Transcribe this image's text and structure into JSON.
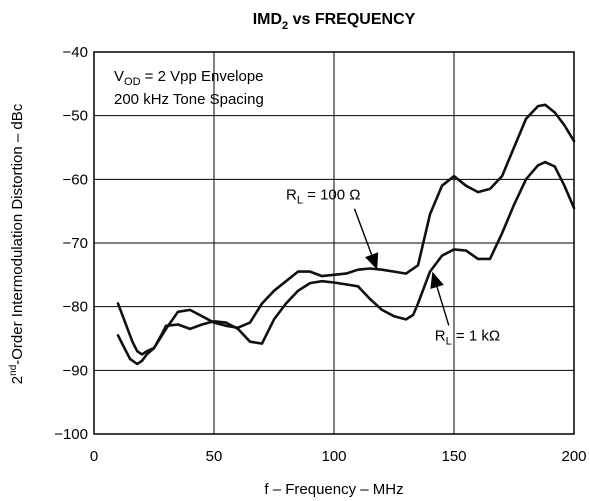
{
  "chart_data": {
    "type": "line",
    "title": {
      "main": "IMD",
      "sub": "2",
      "rest": " vs FREQUENCY"
    },
    "xlabel": "f – Frequency – MHz",
    "ylabel": {
      "pre": "2",
      "sup": "nd",
      "post": "-Order Intermodulation Distortion – dBc"
    },
    "xlim": [
      0,
      200
    ],
    "ylim": [
      -100,
      -40
    ],
    "xticks": [
      0,
      50,
      100,
      150,
      200
    ],
    "yticks": [
      -40,
      -50,
      -60,
      -70,
      -80,
      -90,
      -100
    ],
    "xtick_labels": [
      "0",
      "50",
      "100",
      "150",
      "200"
    ],
    "ytick_labels": [
      "−40",
      "−50",
      "−60",
      "−70",
      "−80",
      "−90",
      "−100"
    ],
    "grid": true,
    "legend_box": {
      "line1": {
        "pre": "V",
        "sub": "OD",
        "post": " = 2 Vpp Envelope"
      },
      "line2": "200 kHz Tone Spacing"
    },
    "annotations": [
      {
        "pre": "R",
        "sub": "L",
        "post": " = 100 Ω",
        "series": 0,
        "label_x": 80,
        "label_y": -63.2,
        "arrow_x": 118,
        "arrow_y": -74.2
      },
      {
        "pre": "R",
        "sub": "L",
        "post": " = 1 kΩ",
        "series": 1,
        "label_x": 142,
        "label_y": -85.3,
        "arrow_x": 141,
        "arrow_y": -74.5
      }
    ],
    "series": [
      {
        "x": [
          10,
          12,
          14,
          16,
          18,
          20,
          22,
          25,
          30,
          35,
          40,
          45,
          50,
          55,
          60,
          65,
          70,
          75,
          80,
          85,
          90,
          95,
          100,
          105,
          110,
          115,
          120,
          125,
          130,
          135,
          140,
          145,
          150,
          155,
          160,
          165,
          170,
          175,
          180,
          185,
          188,
          192,
          196,
          200
        ],
        "y": [
          -79.5,
          -81.5,
          -83.5,
          -85.5,
          -87,
          -87.5,
          -87,
          -86.5,
          -83.5,
          -80.8,
          -80.5,
          -81.5,
          -82.5,
          -83,
          -83.3,
          -82.5,
          -79.5,
          -77.5,
          -76,
          -74.5,
          -74.5,
          -75.2,
          -75,
          -74.8,
          -74.2,
          -74,
          -74.2,
          -74.5,
          -74.8,
          -73.5,
          -65.5,
          -61,
          -59.5,
          -61,
          -62,
          -61.5,
          -59.5,
          -55,
          -50.5,
          -48.5,
          -48.3,
          -49.5,
          -51.5,
          -54
        ]
      },
      {
        "x": [
          10,
          12,
          15,
          18,
          20,
          22,
          25,
          28,
          30,
          35,
          40,
          45,
          50,
          55,
          60,
          65,
          70,
          75,
          80,
          85,
          90,
          95,
          100,
          105,
          110,
          115,
          120,
          125,
          130,
          133,
          135,
          140,
          145,
          150,
          155,
          160,
          165,
          170,
          175,
          180,
          185,
          188,
          192,
          196,
          200
        ],
        "y": [
          -84.5,
          -86,
          -88.2,
          -89,
          -88.5,
          -87.5,
          -86.5,
          -84.5,
          -83,
          -82.8,
          -83.5,
          -82.8,
          -82.3,
          -82.5,
          -83.5,
          -85.5,
          -85.8,
          -82,
          -79.5,
          -77.5,
          -76.3,
          -76,
          -76.2,
          -76.5,
          -76.8,
          -78.8,
          -80.5,
          -81.5,
          -82,
          -81.3,
          -79.5,
          -74.5,
          -72,
          -71,
          -71.2,
          -72.5,
          -72.5,
          -68.5,
          -64,
          -60,
          -57.8,
          -57.3,
          -58,
          -61,
          -64.5
        ]
      }
    ]
  }
}
